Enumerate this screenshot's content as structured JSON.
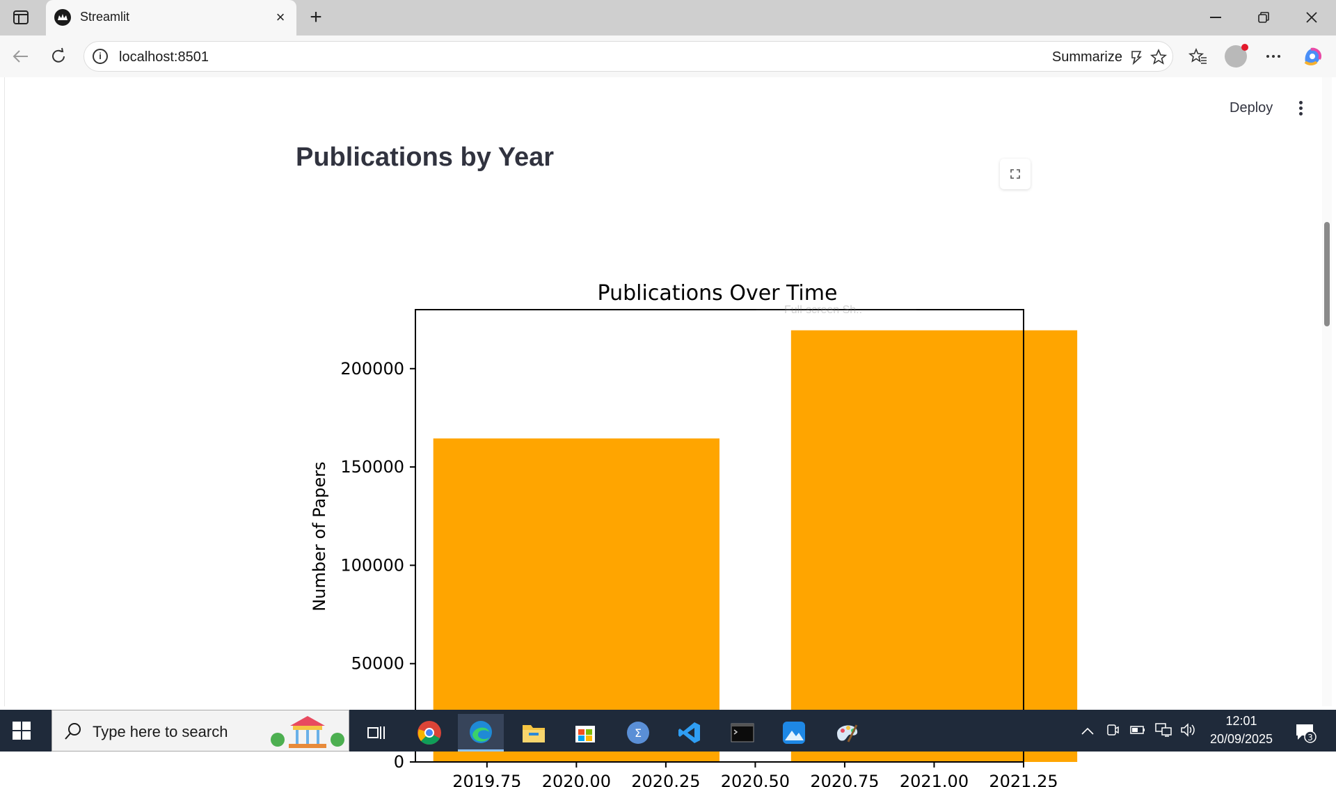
{
  "browser": {
    "tab_title": "Streamlit",
    "url": "localhost:8501",
    "summarize_label": "Summarize"
  },
  "app": {
    "deploy_label": "Deploy",
    "page_title": "Publications by Year",
    "tooltip_text": "Full-screen Sh.."
  },
  "chart_data": {
    "type": "bar",
    "title": "Publications Over Time",
    "xlabel": "",
    "ylabel": "Number of Papers",
    "bar_color": "#ffa500",
    "x_range": [
      2019.55,
      2021.25
    ],
    "ylim": [
      0,
      230000
    ],
    "bars": [
      {
        "x": 2020.0,
        "value": 164500
      },
      {
        "x": 2021.0,
        "value": 219500
      }
    ],
    "yticks": [
      {
        "value": 0,
        "label": "0"
      },
      {
        "value": 50000,
        "label": "50000"
      },
      {
        "value": 100000,
        "label": "100000"
      },
      {
        "value": 150000,
        "label": "150000"
      },
      {
        "value": 200000,
        "label": "200000"
      }
    ],
    "xticks": [
      {
        "value": 2019.75,
        "label": "2019.75"
      },
      {
        "value": 2020.0,
        "label": "2020.00"
      },
      {
        "value": 2020.25,
        "label": "2020.25"
      },
      {
        "value": 2020.5,
        "label": "2020.50"
      },
      {
        "value": 2020.75,
        "label": "2020.75"
      },
      {
        "value": 2021.0,
        "label": "2021.00"
      },
      {
        "value": 2021.25,
        "label": "2021.25"
      }
    ]
  },
  "taskbar": {
    "search_placeholder": "Type here to search",
    "time": "12:01",
    "date": "20/09/2025",
    "notification_count": "3"
  }
}
